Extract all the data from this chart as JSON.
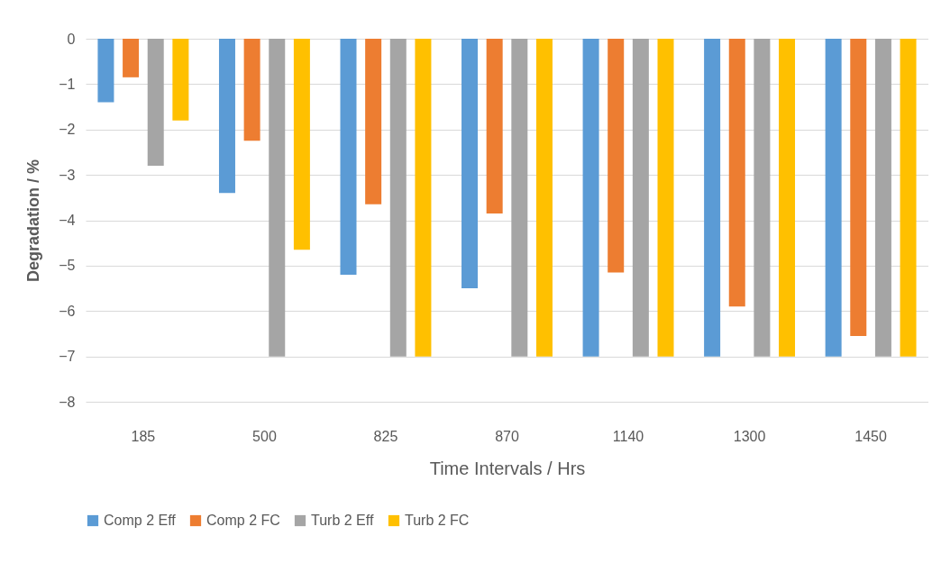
{
  "chart_data": {
    "type": "bar",
    "xlabel": "Time Intervals / Hrs",
    "ylabel": "Degradation / %",
    "categories": [
      "185",
      "500",
      "825",
      "870",
      "1140",
      "1300",
      "1450"
    ],
    "series": [
      {
        "name": "Comp 2 Eff",
        "color": "#5b9bd5",
        "values": [
          -1.4,
          -3.4,
          -5.2,
          -5.5,
          -7,
          -7,
          -7
        ]
      },
      {
        "name": "Comp 2 FC",
        "color": "#ed7d31",
        "values": [
          -0.85,
          -2.25,
          -3.65,
          -3.85,
          -5.15,
          -5.9,
          -6.55
        ]
      },
      {
        "name": "Turb 2 Eff",
        "color": "#a5a5a5",
        "values": [
          -2.8,
          -7,
          -7,
          -7,
          -7,
          -7,
          -7
        ]
      },
      {
        "name": "Turb 2 FC",
        "color": "#ffc000",
        "values": [
          -1.8,
          -4.65,
          -7,
          -7,
          -7,
          -7,
          -7
        ]
      }
    ],
    "ylim": [
      -8,
      0
    ],
    "yticks": [
      -8,
      -7,
      -6,
      -5,
      -4,
      -3,
      -2,
      -1,
      0
    ],
    "grid": "y",
    "legend": "bottom"
  }
}
